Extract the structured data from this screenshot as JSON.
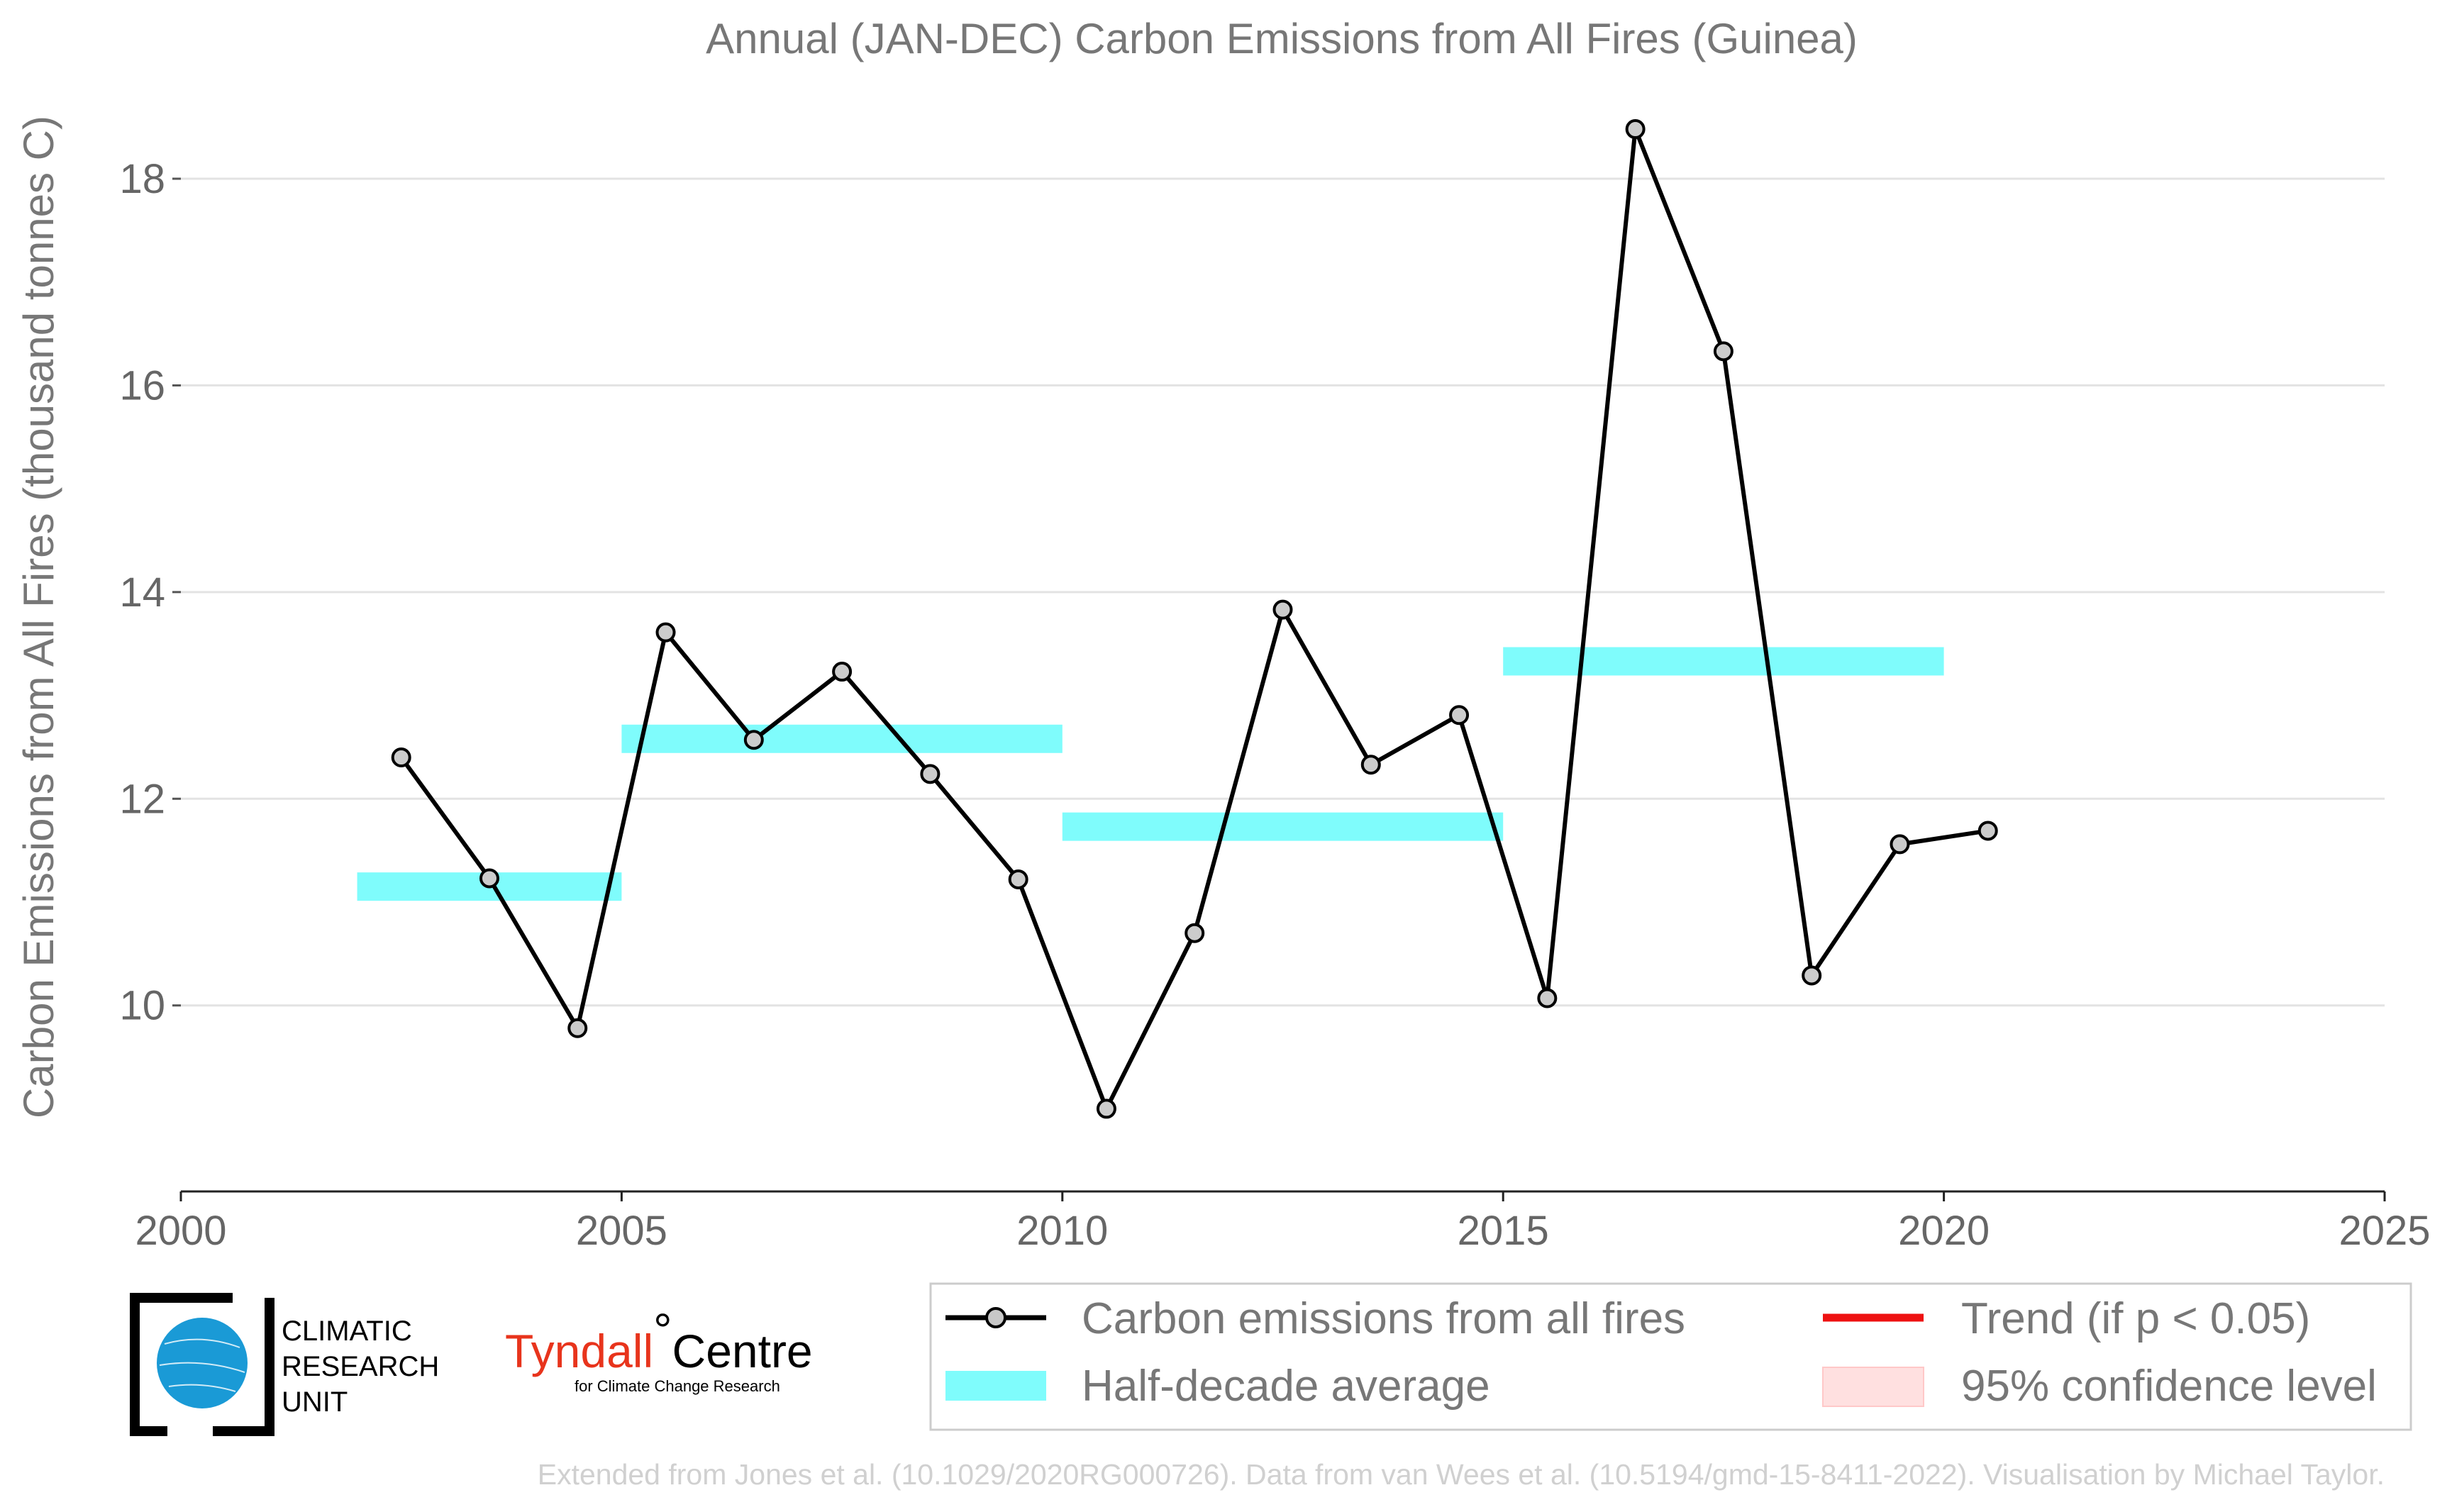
{
  "chart_data": {
    "type": "line",
    "title": "Annual (JAN-DEC) Carbon Emissions from All Fires (Guinea)",
    "xlabel": "",
    "ylabel": "Carbon Emissions from All Fires (thousand tonnes C)",
    "xlim": [
      2000,
      2025
    ],
    "ylim": [
      8.2,
      18.7
    ],
    "xticks": [
      "2000",
      "2005",
      "2010",
      "2015",
      "2020",
      "2025"
    ],
    "yticks": [
      "10",
      "12",
      "14",
      "16",
      "18"
    ],
    "grid": "horizontal",
    "series": [
      {
        "name": "Carbon emissions from all fires",
        "color": "#000000",
        "x": [
          2002.5,
          2003.5,
          2004.5,
          2005.5,
          2006.5,
          2007.5,
          2008.5,
          2009.5,
          2010.5,
          2011.5,
          2012.5,
          2013.5,
          2014.5,
          2015.5,
          2016.5,
          2017.5,
          2018.5,
          2019.5,
          2020.5
        ],
        "y": [
          12.4,
          11.23,
          9.78,
          13.61,
          12.57,
          13.23,
          12.24,
          11.22,
          9.0,
          10.7,
          13.83,
          12.33,
          12.81,
          10.07,
          18.48,
          16.33,
          10.29,
          11.56,
          11.69
        ]
      }
    ],
    "half_decade_average": {
      "name": "Half-decade average",
      "color": "#7ffcfc",
      "segments": [
        {
          "x0": 2002,
          "x1": 2005,
          "y": 11.15
        },
        {
          "x0": 2005,
          "x1": 2010,
          "y": 12.58
        },
        {
          "x0": 2010,
          "x1": 2015,
          "y": 11.73
        },
        {
          "x0": 2015,
          "x1": 2020,
          "y": 13.33
        }
      ]
    },
    "legend": {
      "placement": "bottom-right",
      "entries": [
        "Carbon emissions from all fires",
        "Half-decade average",
        "Trend (if p < 0.05)",
        "95% confidence level"
      ]
    }
  },
  "logos": {
    "cru_lines": [
      "CLIMATIC",
      "RESEARCH",
      "UNIT"
    ],
    "tyndall_name_part1": "Tyndall",
    "tyndall_name_part2": "Centre",
    "tyndall_subtitle": "for Climate Change Research"
  },
  "colors": {
    "trend": "#ee1111",
    "confidence": "#ffe0e0",
    "text": "#777777"
  },
  "credit": "Extended from Jones et al. (10.1029/2020RG000726). Data from van Wees et al. (10.5194/gmd-15-8411-2022). Visualisation by Michael Taylor."
}
